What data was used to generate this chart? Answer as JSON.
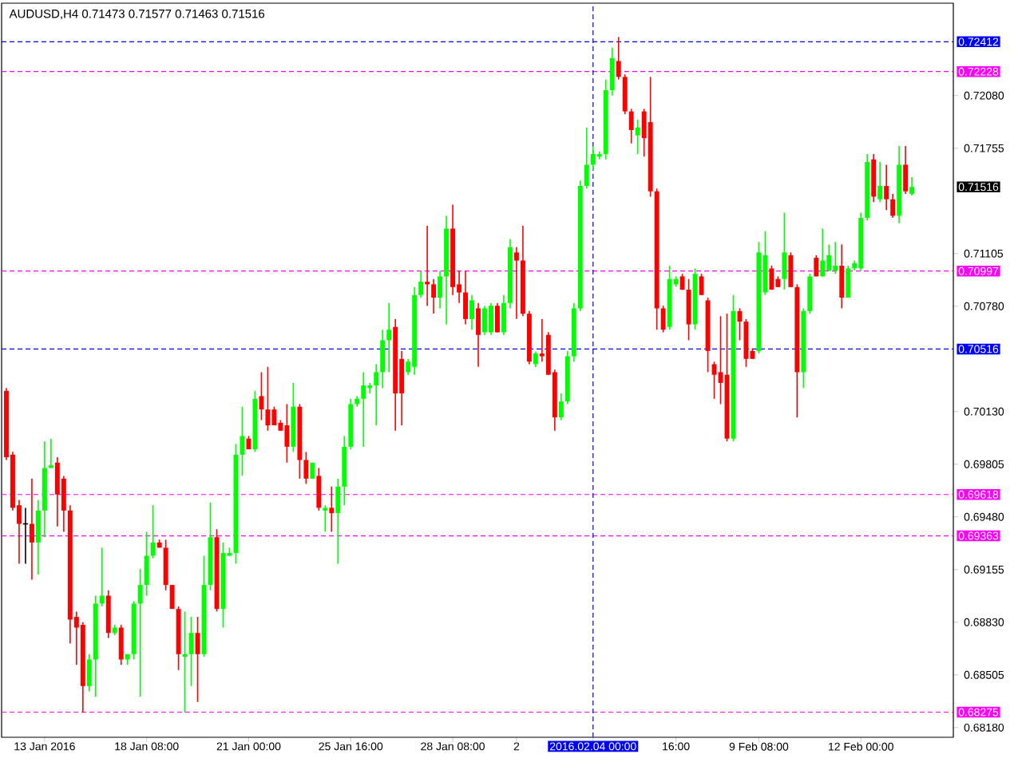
{
  "chart_data": {
    "type": "candlestick",
    "title": "AUDUSD,H4  0.71473 0.71577 0.71463 0.71516",
    "categories": [
      null,
      null,
      null,
      null,
      null,
      null,
      "13 Jan 2016",
      null,
      null,
      null,
      null,
      null,
      null,
      null,
      null,
      null,
      null,
      null,
      null,
      null,
      null,
      null,
      "18 Jan 08:00",
      null,
      null,
      null,
      null,
      null,
      null,
      null,
      null,
      null,
      null,
      null,
      null,
      null,
      null,
      null,
      "21 Jan 00:00",
      null,
      null,
      null,
      null,
      null,
      null,
      null,
      null,
      null,
      null,
      null,
      null,
      null,
      null,
      null,
      "25 Jan 16:00",
      null,
      null,
      null,
      null,
      null,
      null,
      null,
      null,
      null,
      null,
      null,
      null,
      null,
      null,
      null,
      "28 Jan 08:00",
      null,
      null,
      null,
      null,
      null,
      null,
      null,
      null,
      null,
      "2",
      null,
      null,
      null,
      null,
      null,
      null,
      null,
      null,
      null,
      null,
      null,
      "2016.02.04 00:00",
      null,
      null,
      null,
      null,
      null,
      null,
      null,
      null,
      null,
      null,
      null,
      null,
      "16:00",
      null,
      null,
      null,
      null,
      null,
      null,
      null,
      null,
      null,
      null,
      null,
      null,
      "9 Feb 08:00",
      null,
      null,
      null,
      null,
      null,
      null,
      null,
      null,
      null,
      null,
      null,
      null,
      null,
      null,
      null,
      "12 Feb 00:00",
      null,
      null,
      null,
      null,
      null,
      null,
      null,
      null
    ],
    "ohlc": [
      [
        0.70258,
        0.70275,
        0.69831,
        0.69848
      ],
      [
        0.69864,
        0.69881,
        0.69519,
        0.69536
      ],
      [
        0.69552,
        0.69585,
        0.69191,
        0.69437
      ],
      [
        0.69437,
        0.69536,
        0.69191,
        0.69437
      ],
      [
        0.69437,
        0.69716,
        0.69093,
        0.69322
      ],
      [
        0.69322,
        0.69585,
        0.69125,
        0.69519
      ],
      [
        0.69519,
        0.69946,
        0.69355,
        0.69782
      ],
      [
        0.69782,
        0.69963,
        0.69782,
        0.69798
      ],
      [
        0.69815,
        0.69848,
        0.69421,
        0.69618
      ],
      [
        0.69716,
        0.69733,
        0.69388,
        0.69519
      ],
      [
        0.69519,
        0.69552,
        0.68699,
        0.68846
      ],
      [
        0.68863,
        0.68896,
        0.68567,
        0.68797
      ],
      [
        0.68814,
        0.6883,
        0.68272,
        0.68436
      ],
      [
        0.68436,
        0.68633,
        0.68403,
        0.686
      ],
      [
        0.686,
        0.68994,
        0.6837,
        0.68945
      ],
      [
        0.68945,
        0.6929,
        0.68928,
        0.68994
      ],
      [
        0.68994,
        0.69027,
        0.68732,
        0.68764
      ],
      [
        0.68764,
        0.68814,
        0.6875,
        0.68797
      ],
      [
        0.68797,
        0.68814,
        0.68567,
        0.686
      ],
      [
        0.686,
        0.68633,
        0.68567,
        0.68633
      ],
      [
        0.68633,
        0.6896,
        0.686,
        0.68945
      ],
      [
        0.68945,
        0.69158,
        0.6837,
        0.6906
      ],
      [
        0.6906,
        0.69388,
        0.68994,
        0.6924
      ],
      [
        0.6924,
        0.69552,
        0.69224,
        0.69322
      ],
      [
        0.69322,
        0.6934,
        0.6929,
        0.6929
      ],
      [
        0.6929,
        0.69339,
        0.69027,
        0.6906
      ],
      [
        0.6906,
        0.6906,
        0.68912,
        0.68912
      ],
      [
        0.68912,
        0.68928,
        0.68535,
        0.68633
      ],
      [
        0.68617,
        0.68896,
        0.68272,
        0.68633
      ],
      [
        0.68633,
        0.68863,
        0.68436,
        0.68764
      ],
      [
        0.68764,
        0.68863,
        0.68338,
        0.68633
      ],
      [
        0.68633,
        0.6924,
        0.68617,
        0.6906
      ],
      [
        0.6906,
        0.69569,
        0.69027,
        0.69355
      ],
      [
        0.69355,
        0.69404,
        0.68896,
        0.68912
      ],
      [
        0.68912,
        0.69322,
        0.68797,
        0.69257
      ],
      [
        0.6924,
        0.6929,
        0.6924,
        0.69257
      ],
      [
        0.69257,
        0.6993,
        0.69191,
        0.69864
      ],
      [
        0.69864,
        0.7016,
        0.69733,
        0.69979
      ],
      [
        0.69963,
        0.69979,
        0.69897,
        0.69897
      ],
      [
        0.69897,
        0.70258,
        0.69881,
        0.70209
      ],
      [
        0.70225,
        0.70373,
        0.70077,
        0.70143
      ],
      [
        0.70143,
        0.70406,
        0.70012,
        0.70045
      ],
      [
        0.70143,
        0.7016,
        0.70045,
        0.70045
      ],
      [
        0.70061,
        0.70077,
        0.70012,
        0.70012
      ],
      [
        0.70045,
        0.70176,
        0.69815,
        0.69913
      ],
      [
        0.69913,
        0.70307,
        0.69881,
        0.7016
      ],
      [
        0.7016,
        0.70176,
        0.69716,
        0.69831
      ],
      [
        0.69831,
        0.69881,
        0.69684,
        0.69716
      ],
      [
        0.69716,
        0.69815,
        0.69716,
        0.69815
      ],
      [
        0.69733,
        0.69782,
        0.69519,
        0.69536
      ],
      [
        0.69519,
        0.69552,
        0.69388,
        0.69536
      ],
      [
        0.69536,
        0.69667,
        0.69388,
        0.69503
      ],
      [
        0.69503,
        0.69716,
        0.69191,
        0.69667
      ],
      [
        0.69667,
        0.69979,
        0.69552,
        0.69913
      ],
      [
        0.69913,
        0.70209,
        0.69897,
        0.70176
      ],
      [
        0.70176,
        0.70225,
        0.7016,
        0.70209
      ],
      [
        0.70209,
        0.70373,
        0.69913,
        0.70291
      ],
      [
        0.70275,
        0.70307,
        0.70242,
        0.70291
      ],
      [
        0.70291,
        0.70422,
        0.70045,
        0.70373
      ],
      [
        0.70373,
        0.70635,
        0.70275,
        0.7057
      ],
      [
        0.7057,
        0.708,
        0.70373,
        0.70635
      ],
      [
        0.70652,
        0.70701,
        0.70012,
        0.70242
      ],
      [
        0.70455,
        0.70504,
        0.70045,
        0.70242
      ],
      [
        0.70373,
        0.70455,
        0.70356,
        0.70438
      ],
      [
        0.70406,
        0.70898,
        0.70357,
        0.70849
      ],
      [
        0.70849,
        0.70998,
        0.70833,
        0.70931
      ],
      [
        0.70931,
        0.71276,
        0.70783,
        0.70915
      ],
      [
        0.70915,
        0.70948,
        0.70734,
        0.70833
      ],
      [
        0.70833,
        0.70998,
        0.70767,
        0.70964
      ],
      [
        0.70964,
        0.71338,
        0.70668,
        0.71259
      ],
      [
        0.71259,
        0.71407,
        0.70849,
        0.70898
      ],
      [
        0.70915,
        0.70998,
        0.708,
        0.70865
      ],
      [
        0.70865,
        0.70998,
        0.70668,
        0.70701
      ],
      [
        0.70701,
        0.70849,
        0.70635,
        0.70816
      ],
      [
        0.70767,
        0.708,
        0.70406,
        0.70603
      ],
      [
        0.70619,
        0.70783,
        0.70603,
        0.70767
      ],
      [
        0.70619,
        0.708,
        0.70603,
        0.70783
      ],
      [
        0.70783,
        0.708,
        0.70619,
        0.70619
      ],
      [
        0.70619,
        0.70849,
        0.70603,
        0.708
      ],
      [
        0.708,
        0.71194,
        0.70767,
        0.71144
      ],
      [
        0.71112,
        0.71144,
        0.70701,
        0.71062
      ],
      [
        0.71062,
        0.71276,
        0.70718,
        0.70734
      ],
      [
        0.70734,
        0.7075,
        0.70422,
        0.70438
      ],
      [
        0.70422,
        0.705,
        0.70405,
        0.70488
      ],
      [
        0.70488,
        0.70701,
        0.70438,
        0.70471
      ],
      [
        0.70603,
        0.7062,
        0.70357,
        0.70357
      ],
      [
        0.70373,
        0.70389,
        0.70012,
        0.70094
      ],
      [
        0.70094,
        0.70242,
        0.70077,
        0.70192
      ],
      [
        0.70192,
        0.70504,
        0.70176,
        0.70471
      ],
      [
        0.70471,
        0.708,
        0.70438,
        0.70767
      ],
      [
        0.70767,
        0.71555,
        0.7075,
        0.71522
      ],
      [
        0.71522,
        0.71883,
        0.71506,
        0.71653
      ],
      [
        0.71653,
        0.71768,
        0.7162,
        0.71719
      ],
      [
        0.71703,
        0.71735,
        0.71686,
        0.71719
      ],
      [
        0.71719,
        0.72179,
        0.71686,
        0.72113
      ],
      [
        0.72113,
        0.72376,
        0.7208,
        0.7231
      ],
      [
        0.72293,
        0.72441,
        0.72179,
        0.72195
      ],
      [
        0.72195,
        0.7221,
        0.71965,
        0.71982
      ],
      [
        0.71982,
        0.71998,
        0.71785,
        0.71867
      ],
      [
        0.71834,
        0.71932,
        0.71719,
        0.71883
      ],
      [
        0.71982,
        0.71998,
        0.71703,
        0.71817
      ],
      [
        0.71916,
        0.72195,
        0.71456,
        0.71489
      ],
      [
        0.71489,
        0.71506,
        0.70635,
        0.70767
      ],
      [
        0.70767,
        0.70783,
        0.70619,
        0.70635
      ],
      [
        0.70652,
        0.7103,
        0.70635,
        0.70948
      ],
      [
        0.70915,
        0.70964,
        0.709,
        0.70948
      ],
      [
        0.70964,
        0.7098,
        0.7088,
        0.70882
      ],
      [
        0.70882,
        0.70948,
        0.7057,
        0.70668
      ],
      [
        0.70668,
        0.71013,
        0.70635,
        0.7098
      ],
      [
        0.70964,
        0.7098,
        0.70849,
        0.70849
      ],
      [
        0.70816,
        0.70833,
        0.70373,
        0.70504
      ],
      [
        0.70422,
        0.70438,
        0.70209,
        0.70357
      ],
      [
        0.70373,
        0.70718,
        0.70176,
        0.70307
      ],
      [
        0.70357,
        0.70734,
        0.69946,
        0.69963
      ],
      [
        0.69963,
        0.70849,
        0.69946,
        0.7075
      ],
      [
        0.7075,
        0.70767,
        0.7057,
        0.70685
      ],
      [
        0.70685,
        0.70701,
        0.70406,
        0.70455
      ],
      [
        0.70504,
        0.7052,
        0.70455,
        0.70455
      ],
      [
        0.70504,
        0.71177,
        0.70488,
        0.71112
      ],
      [
        0.70865,
        0.71243,
        0.70849,
        0.71095
      ],
      [
        0.71013,
        0.7103,
        0.70882,
        0.70882
      ],
      [
        0.70948,
        0.70964,
        0.70898,
        0.70898
      ],
      [
        0.70948,
        0.71358,
        0.70882,
        0.71112
      ],
      [
        0.71095,
        0.71112,
        0.70898,
        0.70898
      ],
      [
        0.70898,
        0.70915,
        0.70094,
        0.70373
      ],
      [
        0.70373,
        0.70767,
        0.70275,
        0.7075
      ],
      [
        0.7075,
        0.7098,
        0.70734,
        0.70964
      ],
      [
        0.71079,
        0.71095,
        0.70964,
        0.70964
      ],
      [
        0.70964,
        0.71259,
        0.70964,
        0.71062
      ],
      [
        0.70998,
        0.71161,
        0.70998,
        0.71095
      ],
      [
        0.70998,
        0.71177,
        0.7098,
        0.7103
      ],
      [
        0.7103,
        0.71161,
        0.70767,
        0.70833
      ],
      [
        0.70833,
        0.7103,
        0.70833,
        0.71013
      ],
      [
        0.71013,
        0.71062,
        0.71,
        0.71046
      ],
      [
        0.71013,
        0.71358,
        0.70998,
        0.71325
      ],
      [
        0.71325,
        0.71719,
        0.71309,
        0.7167
      ],
      [
        0.71686,
        0.71719,
        0.71423,
        0.71456
      ],
      [
        0.7144,
        0.7167,
        0.71423,
        0.71522
      ],
      [
        0.71522,
        0.71653,
        0.71374,
        0.7144
      ],
      [
        0.7144,
        0.71473,
        0.71325,
        0.71338
      ],
      [
        0.71338,
        0.71768,
        0.71292,
        0.71653
      ],
      [
        0.71653,
        0.71768,
        0.71473,
        0.71489
      ],
      [
        0.71473,
        0.71577,
        0.71463,
        0.71516
      ]
    ],
    "ylim": [
      0.6812,
      0.7265
    ],
    "yticks": [
      {
        "value": 0.7208,
        "label": "0.72080"
      },
      {
        "value": 0.71755,
        "label": "0.71755"
      },
      {
        "value": 0.71105,
        "label": "0.71105"
      },
      {
        "value": 0.7078,
        "label": "0.70780"
      },
      {
        "value": 0.7013,
        "label": "0.70130"
      },
      {
        "value": 0.69805,
        "label": "0.69805"
      },
      {
        "value": 0.6948,
        "label": "0.69480"
      },
      {
        "value": 0.69155,
        "label": "0.69155"
      },
      {
        "value": 0.6883,
        "label": "0.68830"
      },
      {
        "value": 0.68505,
        "label": "0.68505"
      },
      {
        "value": 0.6818,
        "label": "0.68180"
      }
    ],
    "annotations": [
      "0.71516"
    ],
    "ref_lines": [
      {
        "axis": "y",
        "value": 0.72412,
        "label": "0.72412",
        "color": "#0000ff",
        "line_style": "dashed"
      },
      {
        "axis": "y",
        "value": 0.72228,
        "label": "0.72228",
        "color": "#ff00ff",
        "line_style": "dashed"
      },
      {
        "axis": "y",
        "value": 0.70997,
        "label": "0.70997",
        "color": "#ff00ff",
        "line_style": "dashed"
      },
      {
        "axis": "y",
        "value": 0.70516,
        "label": "0.70516",
        "color": "#0000ff",
        "line_style": "dashed"
      },
      {
        "axis": "y",
        "value": 0.69618,
        "label": "0.69618",
        "color": "#ff00ff",
        "line_style": "dashed"
      },
      {
        "axis": "y",
        "value": 0.69363,
        "label": "0.69363",
        "color": "#ff00ff",
        "line_style": "dashed"
      },
      {
        "axis": "y",
        "value": 0.68275,
        "label": "0.68275",
        "color": "#ff00ff",
        "line_style": "dashed"
      },
      {
        "axis": "x",
        "value": "2016.02.04 00:00",
        "color": "#0000ff",
        "line_style": "dashed"
      }
    ]
  }
}
